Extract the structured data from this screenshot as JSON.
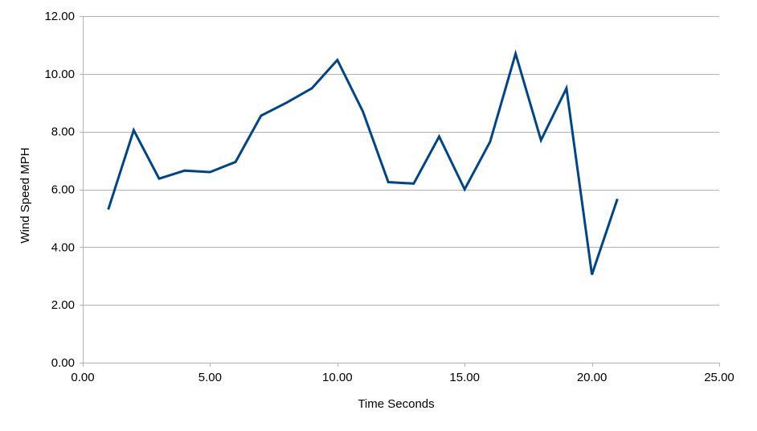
{
  "chart_data": {
    "type": "line",
    "title": "",
    "xlabel": "Time Seconds",
    "ylabel": "Wind Speed MPH",
    "xlim": [
      0,
      25
    ],
    "ylim": [
      0,
      12
    ],
    "x_ticks": [
      0,
      5,
      10,
      15,
      20,
      25
    ],
    "y_ticks": [
      0,
      2,
      4,
      6,
      8,
      10,
      12
    ],
    "x_tick_labels": [
      "0.00",
      "5.00",
      "10.00",
      "15.00",
      "20.00",
      "25.00"
    ],
    "y_tick_labels": [
      "0.00",
      "2.00",
      "4.00",
      "6.00",
      "8.00",
      "10.00",
      "12.00"
    ],
    "grid": "horizontal",
    "legend": "none",
    "series": [
      {
        "color": "#004586",
        "x": [
          1,
          2,
          3,
          4,
          5,
          6,
          7,
          8,
          9,
          10,
          11,
          12,
          13,
          14,
          15,
          16,
          17,
          18,
          19,
          20,
          21
        ],
        "y": [
          5.3,
          8.05,
          6.37,
          6.65,
          6.6,
          6.95,
          8.55,
          9.0,
          9.5,
          10.48,
          8.7,
          6.25,
          6.2,
          7.83,
          6.0,
          7.65,
          10.7,
          7.7,
          9.5,
          3.05,
          5.67
        ]
      }
    ]
  },
  "colors": {
    "gridline": "#b3b3b3",
    "axis": "#b3b3b3",
    "line": "#004586"
  }
}
